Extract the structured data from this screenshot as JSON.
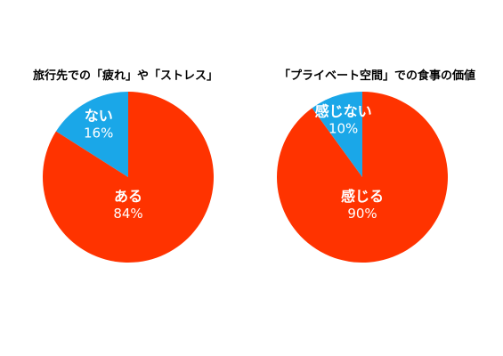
{
  "chart_data": [
    {
      "type": "pie",
      "title": "旅行先での「疲れ」や「ストレス」",
      "categories": [
        "ある",
        "ない"
      ],
      "values": [
        84,
        16
      ],
      "value_labels": [
        "84%",
        "16%"
      ],
      "colors": [
        "#ff3300",
        "#1aa7e8"
      ]
    },
    {
      "type": "pie",
      "title": "「プライベート空間」での食事の価値",
      "categories": [
        "感じる",
        "感じない"
      ],
      "values": [
        90,
        10
      ],
      "value_labels": [
        "90%",
        "10%"
      ],
      "colors": [
        "#ff3300",
        "#1aa7e8"
      ]
    }
  ]
}
